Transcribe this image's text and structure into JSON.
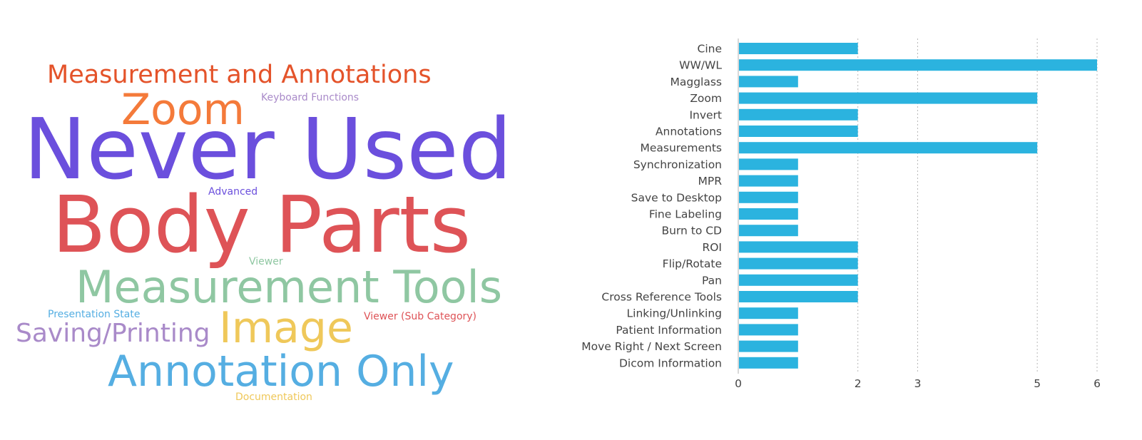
{
  "word_cloud": {
    "words": [
      {
        "text": "Measurement and Annotations",
        "color": "#E4532A"
      },
      {
        "text": "Zoom",
        "color": "#F47A3A"
      },
      {
        "text": "Keyboard Functions",
        "color": "#A98AC9"
      },
      {
        "text": "Never Used",
        "color": "#6B4FDD"
      },
      {
        "text": "Advanced",
        "color": "#6B4FDD"
      },
      {
        "text": "Body Parts",
        "color": "#DE5357"
      },
      {
        "text": "Viewer",
        "color": "#8FC7A2"
      },
      {
        "text": "Measurement Tools",
        "color": "#8FC7A2"
      },
      {
        "text": "Presentation State",
        "color": "#55AEE2"
      },
      {
        "text": "Viewer (Sub Category)",
        "color": "#DE5357"
      },
      {
        "text": "Saving/Printing",
        "color": "#A98AC9"
      },
      {
        "text": "Image",
        "color": "#EFC85A"
      },
      {
        "text": "Annotation Only",
        "color": "#55AEE2"
      },
      {
        "text": "Documentation",
        "color": "#EFC85A"
      }
    ]
  },
  "chart_data": {
    "type": "bar",
    "orientation": "horizontal",
    "categories": [
      "Cine",
      "WW/WL",
      "Magglass",
      "Zoom",
      "Invert",
      "Annotations",
      "Measurements",
      "Synchronization",
      "MPR",
      "Save to Desktop",
      "Fine Labeling",
      "Burn to CD",
      "ROI",
      "Flip/Rotate",
      "Pan",
      "Cross Reference Tools",
      "Linking/Unlinking",
      "Patient Information",
      "Move Right / Next Screen",
      "Dicom Information"
    ],
    "values": [
      2,
      6,
      1,
      5,
      2,
      2,
      5,
      1,
      1,
      1,
      1,
      1,
      2,
      2,
      2,
      2,
      1,
      1,
      1,
      1
    ],
    "x_ticks": [
      "0",
      "2",
      "3",
      "5",
      "6"
    ],
    "xlim": [
      0,
      6
    ],
    "grid": "vertical dotted",
    "bar_color": "#2BB3DF",
    "title": "",
    "xlabel": "",
    "ylabel": ""
  }
}
